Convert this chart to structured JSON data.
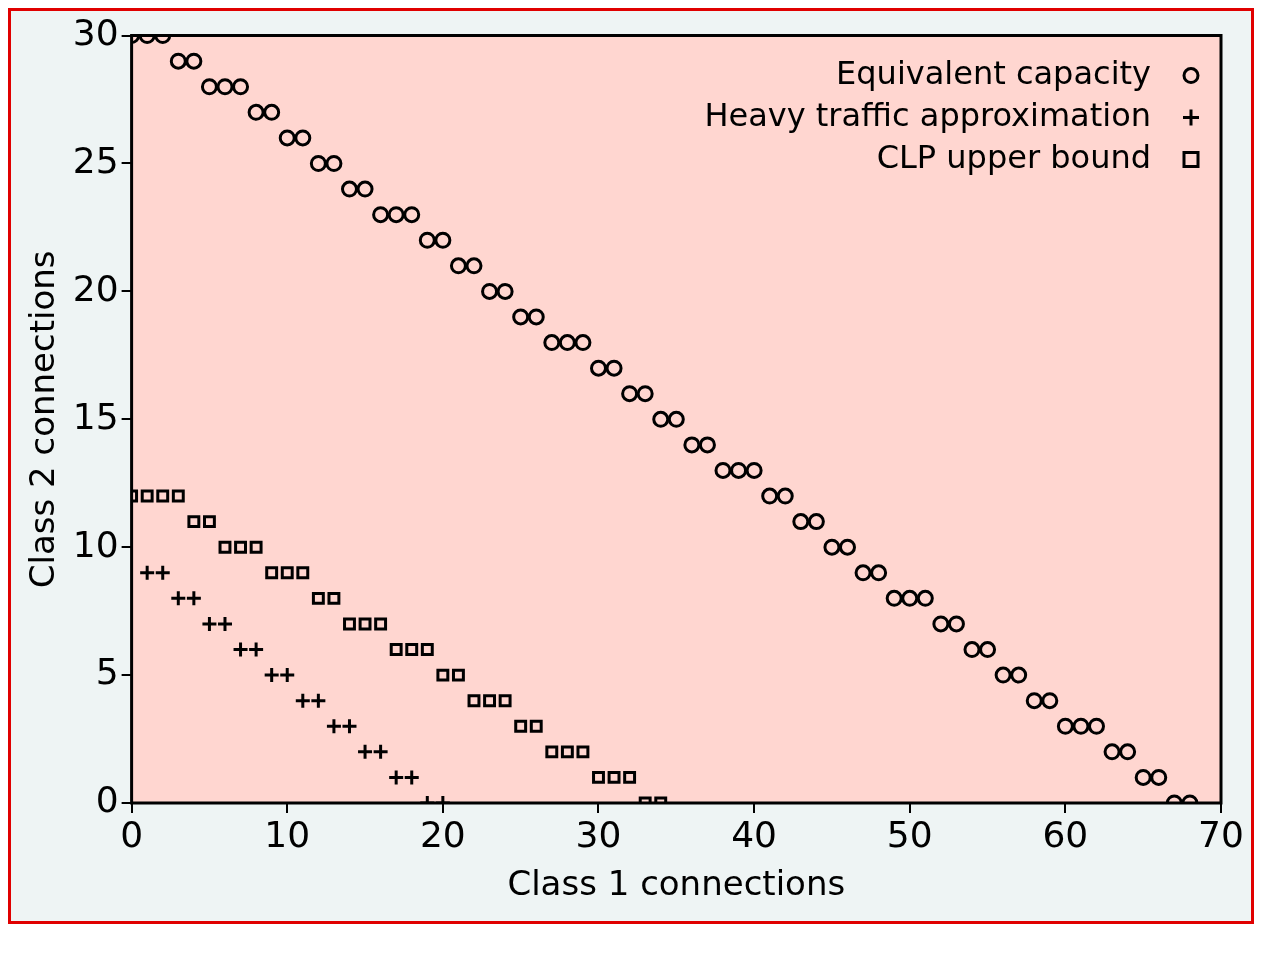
{
  "chart_data": {
    "type": "scatter",
    "xlabel": "Class 1 connections",
    "ylabel": "Class 2 connections",
    "xlim": [
      0,
      70
    ],
    "ylim": [
      0,
      30
    ],
    "xticks": [
      0,
      10,
      20,
      30,
      40,
      50,
      60,
      70
    ],
    "yticks": [
      0,
      5,
      10,
      15,
      20,
      25,
      30
    ],
    "grid": false,
    "legend": "top right",
    "series": [
      {
        "name": "Equivalent capacity",
        "color": "#000000",
        "marker": "circle",
        "x": [
          0,
          1,
          2,
          3,
          4,
          5,
          6,
          7,
          8,
          9,
          10,
          11,
          12,
          13,
          14,
          15,
          16,
          17,
          18,
          19,
          20,
          21,
          22,
          23,
          24,
          25,
          26,
          27,
          28,
          29,
          30,
          31,
          32,
          33,
          34,
          35,
          36,
          37,
          38,
          39,
          40,
          41,
          42,
          43,
          44,
          45,
          46,
          47,
          48,
          49,
          50,
          51,
          52,
          53,
          54,
          55,
          56,
          57,
          58,
          59,
          60,
          61,
          62,
          63,
          64,
          65,
          66,
          67,
          68
        ],
        "values": [
          30,
          30,
          30,
          29,
          29,
          28,
          28,
          28,
          27,
          27,
          26,
          26,
          25,
          25,
          24,
          24,
          23,
          23,
          23,
          22,
          22,
          21,
          21,
          20,
          20,
          19,
          19,
          18,
          18,
          18,
          17,
          17,
          16,
          16,
          15,
          15,
          14,
          14,
          13,
          13,
          13,
          12,
          12,
          11,
          11,
          10,
          10,
          9,
          9,
          8,
          8,
          8,
          7,
          7,
          6,
          6,
          5,
          5,
          4,
          4,
          3,
          3,
          3,
          2,
          2,
          1,
          1,
          0,
          0
        ]
      },
      {
        "name": "Heavy traffic approximation",
        "color": "#000000",
        "marker": "cross",
        "x": [
          1,
          2,
          3,
          4,
          5,
          6,
          7,
          8,
          9,
          10,
          11,
          12,
          13,
          14,
          15,
          16,
          17,
          18,
          19,
          20
        ],
        "values": [
          9,
          9,
          8,
          8,
          7,
          7,
          6,
          6,
          5,
          5,
          4,
          4,
          3,
          3,
          2,
          2,
          1,
          1,
          0,
          0
        ]
      },
      {
        "name": "CLP upper bound",
        "color": "#000000",
        "marker": "square",
        "x": [
          0,
          1,
          2,
          3,
          4,
          5,
          6,
          7,
          8,
          9,
          10,
          11,
          12,
          13,
          14,
          15,
          16,
          17,
          18,
          19,
          20,
          21,
          22,
          23,
          24,
          25,
          26,
          27,
          28,
          29,
          30,
          31,
          32,
          33,
          34
        ],
        "values": [
          12,
          12,
          12,
          12,
          11,
          11,
          10,
          10,
          10,
          9,
          9,
          9,
          8,
          8,
          7,
          7,
          7,
          6,
          6,
          6,
          5,
          5,
          4,
          4,
          4,
          3,
          3,
          2,
          2,
          2,
          1,
          1,
          1,
          0,
          0
        ]
      }
    ]
  }
}
